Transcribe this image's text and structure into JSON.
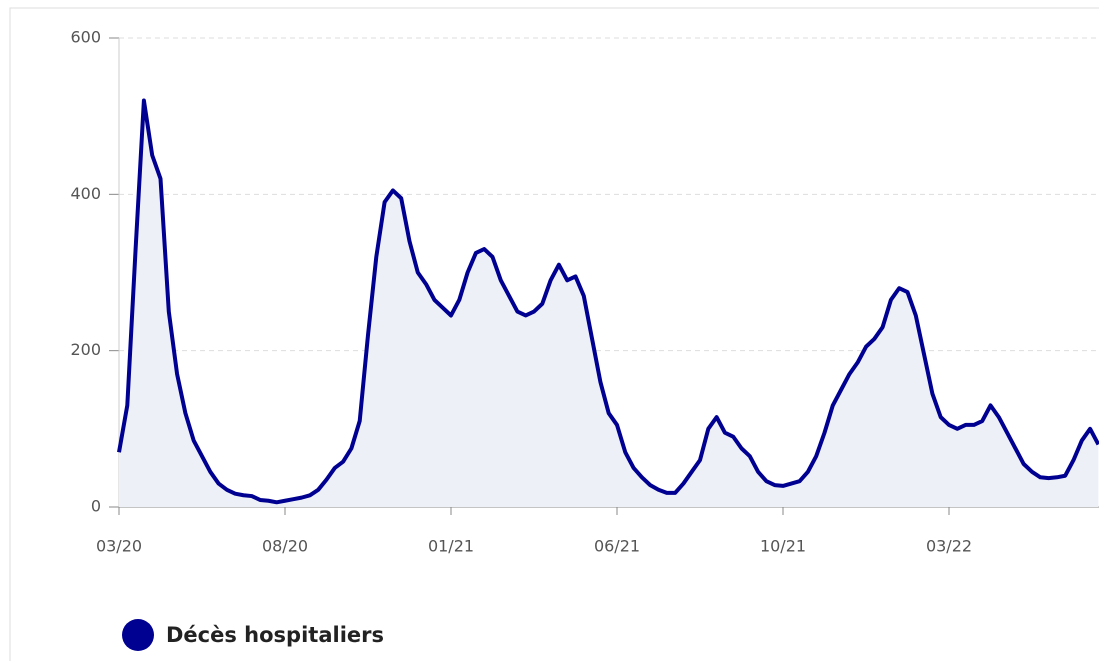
{
  "chart_data": {
    "type": "line",
    "categories": [
      "03/20",
      null,
      null,
      null,
      null,
      null,
      null,
      null,
      null,
      null,
      null,
      null,
      null,
      null,
      null,
      null,
      null,
      null,
      null,
      null,
      "08/20",
      null,
      null,
      null,
      null,
      null,
      null,
      null,
      null,
      null,
      null,
      null,
      null,
      null,
      null,
      null,
      null,
      null,
      null,
      null,
      "01/21",
      null,
      null,
      null,
      null,
      null,
      null,
      null,
      null,
      null,
      null,
      null,
      null,
      null,
      null,
      null,
      null,
      null,
      null,
      null,
      "06/21",
      null,
      null,
      null,
      null,
      null,
      null,
      null,
      null,
      null,
      null,
      null,
      null,
      null,
      null,
      null,
      null,
      null,
      null,
      null,
      "10/21",
      null,
      null,
      null,
      null,
      null,
      null,
      null,
      null,
      null,
      null,
      null,
      null,
      null,
      null,
      null,
      null,
      null,
      null,
      null,
      "03/22",
      null,
      null,
      null,
      null,
      null,
      null,
      null,
      null,
      null,
      null,
      null,
      null,
      null,
      null,
      null,
      null,
      null,
      null
    ],
    "series": [
      {
        "name": "Décès hospitaliers",
        "color": "#000091",
        "values": [
          70,
          130,
          330,
          520,
          450,
          420,
          250,
          170,
          120,
          85,
          65,
          45,
          30,
          22,
          17,
          15,
          14,
          9,
          8,
          6,
          8,
          10,
          12,
          15,
          22,
          35,
          50,
          58,
          75,
          110,
          220,
          320,
          390,
          405,
          395,
          340,
          300,
          285,
          265,
          255,
          245,
          265,
          300,
          325,
          330,
          320,
          290,
          270,
          250,
          245,
          250,
          260,
          290,
          310,
          290,
          295,
          270,
          215,
          160,
          120,
          105,
          70,
          50,
          38,
          28,
          22,
          18,
          18,
          30,
          45,
          60,
          100,
          115,
          95,
          90,
          75,
          65,
          45,
          33,
          28,
          27,
          30,
          33,
          45,
          65,
          95,
          130,
          150,
          170,
          185,
          205,
          215,
          230,
          265,
          280,
          275,
          245,
          195,
          145,
          115,
          105,
          100,
          105,
          105,
          110,
          130,
          115,
          95,
          75,
          55,
          45,
          38,
          37,
          38,
          40,
          60,
          85,
          100,
          80
        ]
      }
    ],
    "ylim": [
      0,
      600
    ],
    "yticks": [
      0,
      200,
      400,
      600
    ],
    "grid": true,
    "legend": "bottom"
  }
}
